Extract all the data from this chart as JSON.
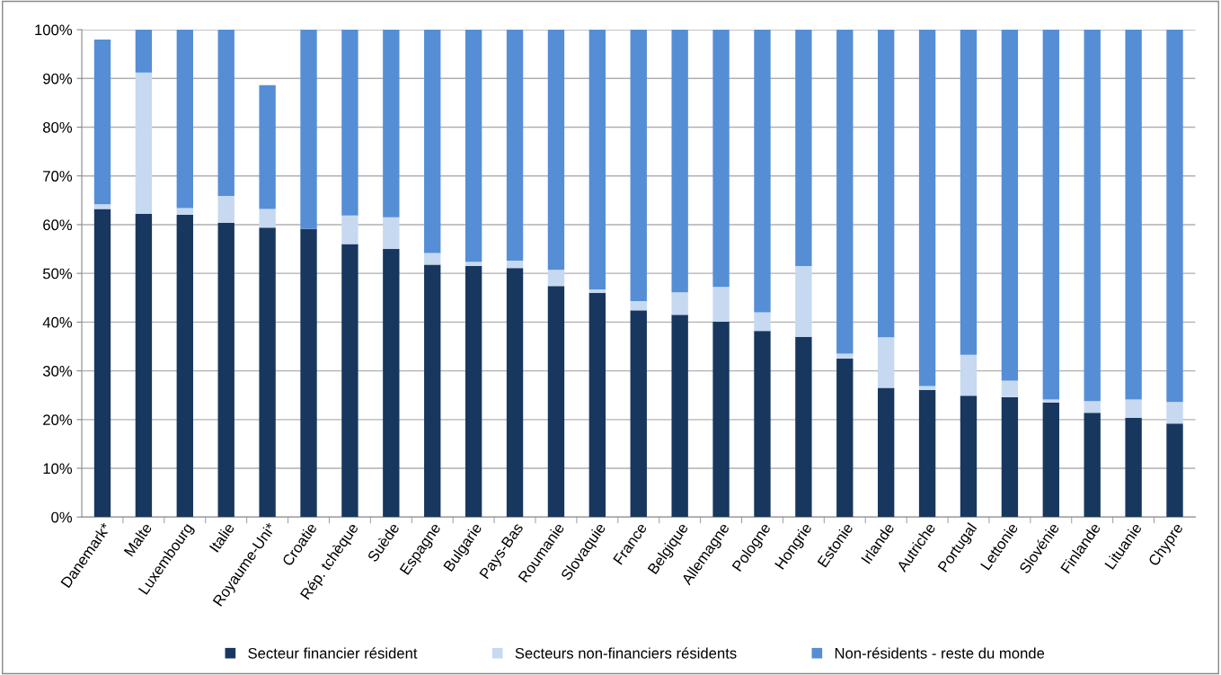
{
  "chart_data": {
    "type": "bar",
    "stacked": true,
    "categories": [
      "Danemark*",
      "Malte",
      "Luxembourg",
      "Italie",
      "Royaume-Uni*",
      "Croatie",
      "Rép. tchèque",
      "Suède",
      "Espagne",
      "Bulgarie",
      "Pays-Bas",
      "Roumanie",
      "Slovaquie",
      "France",
      "Belgique",
      "Allemagne",
      "Pologne",
      "Hongrie",
      "Estonie",
      "Irlande",
      "Autriche",
      "Portugal",
      "Lettonie",
      "Slovénie",
      "Finlande",
      "Lituanie",
      "Chypre"
    ],
    "series": [
      {
        "name": "Secteur financier résident",
        "color": "#17375e",
        "values": [
          63.2,
          62.2,
          62.0,
          60.4,
          59.4,
          59.1,
          56.0,
          55.0,
          51.8,
          51.5,
          51.1,
          47.4,
          46.0,
          42.4,
          41.5,
          40.1,
          38.2,
          37.0,
          32.5,
          26.5,
          26.1,
          24.9,
          24.6,
          23.5,
          21.4,
          20.4,
          19.2
        ]
      },
      {
        "name": "Secteurs non-financiers résidents",
        "color": "#c6d9f1",
        "values": [
          1.0,
          29.0,
          1.4,
          5.5,
          3.8,
          0,
          5.9,
          6.5,
          2.4,
          0.9,
          1.5,
          3.3,
          0.7,
          1.9,
          4.6,
          7.1,
          3.8,
          14.5,
          1.0,
          10.4,
          0.8,
          8.4,
          3.4,
          0.6,
          2.4,
          3.7,
          4.4
        ]
      },
      {
        "name": "Non-résidents - reste du monde",
        "color": "#558ed5",
        "values": [
          33.8,
          8.8,
          36.6,
          34.1,
          25.4,
          40.9,
          38.1,
          38.5,
          45.8,
          47.6,
          47.4,
          49.3,
          53.3,
          55.7,
          53.9,
          52.8,
          58.0,
          48.5,
          66.5,
          63.1,
          73.1,
          66.7,
          72.0,
          75.9,
          76.2,
          75.9,
          76.4
        ]
      }
    ],
    "ylim": [
      0,
      100
    ],
    "yticks": [
      {
        "value": 0,
        "label": "0%"
      },
      {
        "value": 10,
        "label": "10%"
      },
      {
        "value": 20,
        "label": "20%"
      },
      {
        "value": 30,
        "label": "30%"
      },
      {
        "value": 40,
        "label": "40%"
      },
      {
        "value": 50,
        "label": "50%"
      },
      {
        "value": 60,
        "label": "60%"
      },
      {
        "value": 70,
        "label": "70%"
      },
      {
        "value": 80,
        "label": "80%"
      },
      {
        "value": 90,
        "label": "90%"
      },
      {
        "value": 100,
        "label": "100%"
      }
    ],
    "grid": "y",
    "legend": "bottom"
  }
}
